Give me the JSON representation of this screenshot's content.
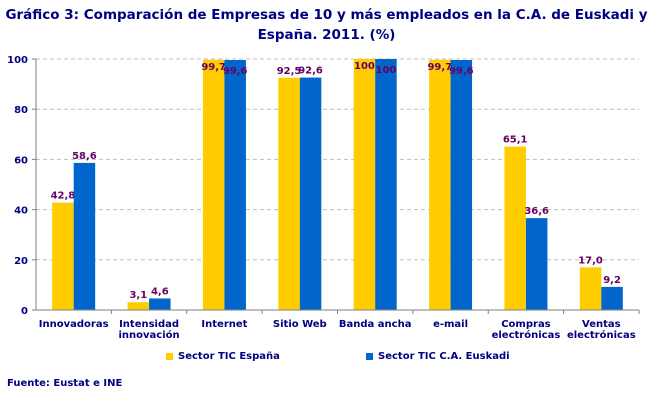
{
  "chart_data": {
    "type": "bar",
    "title_lines": [
      "Gráfico 3: Comparación de Empresas de 10 y más empleados en la C.A. de Euskadi y",
      "España. 2011. (%)"
    ],
    "categories": [
      [
        "Innovadoras"
      ],
      [
        "Intensidad",
        "innovación"
      ],
      [
        "Internet"
      ],
      [
        "Sitio Web"
      ],
      [
        "Banda ancha"
      ],
      [
        "e-mail"
      ],
      [
        "Compras",
        "electrónicas"
      ],
      [
        "Ventas",
        "electrónicas"
      ]
    ],
    "series": [
      {
        "name": "Sector TIC España",
        "color": "#FFCC00",
        "values": [
          42.8,
          3.1,
          99.7,
          92.5,
          100,
          99.7,
          65.1,
          17.0
        ],
        "labels": [
          "42,8",
          "3,1",
          "99,7",
          "92,5",
          "100",
          "99,7",
          "65,1",
          "17,0"
        ]
      },
      {
        "name": "Sector TIC C.A. Euskadi",
        "color": "#0066CC",
        "values": [
          58.6,
          4.6,
          99.6,
          92.6,
          100,
          99.6,
          36.6,
          9.2
        ],
        "labels": [
          "58,6",
          "4,6",
          "99,6",
          "92,6",
          "100",
          "99,6",
          "36,6",
          "9,2"
        ]
      }
    ],
    "ylim": [
      0,
      100
    ],
    "yticks": [
      0,
      20,
      40,
      60,
      80,
      100
    ],
    "grid": true,
    "legend_position": "bottom",
    "label_color": "#660066",
    "axis_text_color": "#000080"
  },
  "source": "Fuente: Eustat e INE"
}
